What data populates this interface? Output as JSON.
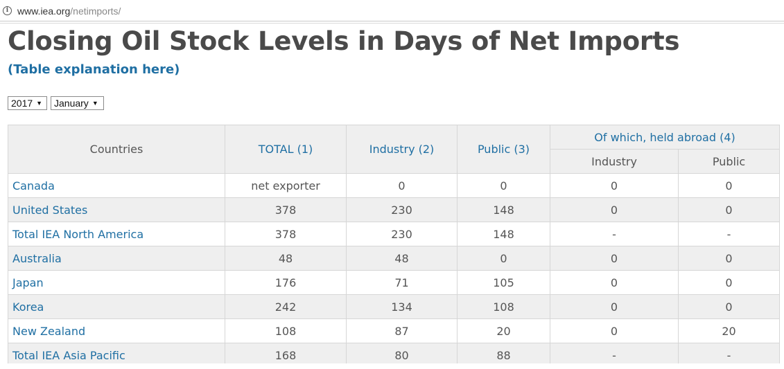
{
  "browser": {
    "url_host": "www.iea.org",
    "url_path": "/netimports/",
    "info_icon": "info-icon"
  },
  "page": {
    "title": "Closing Oil Stock Levels in Days of Net Imports",
    "explanation_link": "(Table explanation here)"
  },
  "filters": {
    "year": "2017",
    "month": "January",
    "caret": "▼"
  },
  "table": {
    "headers": {
      "countries": "Countries",
      "total": "TOTAL (1)",
      "industry": "Industry (2)",
      "public": "Public (3)",
      "held_abroad": "Of which, held abroad (4)",
      "abroad_industry": "Industry",
      "abroad_public": "Public"
    },
    "rows": [
      [
        "Canada",
        "net exporter",
        "0",
        "0",
        "0",
        "0"
      ],
      [
        "United States",
        "378",
        "230",
        "148",
        "0",
        "0"
      ],
      [
        "Total IEA North America",
        "378",
        "230",
        "148",
        "-",
        "-"
      ],
      [
        "Australia",
        "48",
        "48",
        "0",
        "0",
        "0"
      ],
      [
        "Japan",
        "176",
        "71",
        "105",
        "0",
        "0"
      ],
      [
        "Korea",
        "242",
        "134",
        "108",
        "0",
        "0"
      ],
      [
        "New Zealand",
        "108",
        "87",
        "20",
        "0",
        "20"
      ],
      [
        "Total IEA Asia Pacific",
        "168",
        "80",
        "88",
        "-",
        "-"
      ]
    ]
  },
  "colors": {
    "link": "#1f6fa3",
    "title": "#4a4a4a",
    "header_bg": "#efefef",
    "stripe_bg": "#efefef",
    "border": "#d6d6d6"
  }
}
